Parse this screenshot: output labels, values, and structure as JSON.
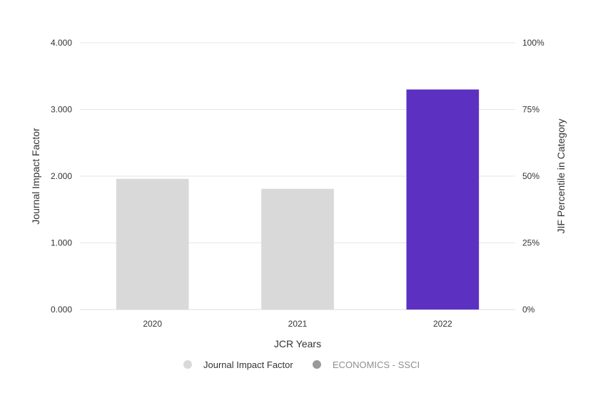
{
  "chart_data": {
    "type": "bar",
    "categories": [
      "2020",
      "2021",
      "2022"
    ],
    "series": [
      {
        "name": "Journal Impact Factor",
        "values": [
          1.96,
          1.81,
          3.3
        ],
        "colors": [
          "#d9d9d9",
          "#d9d9d9",
          "#5c31c1"
        ]
      }
    ],
    "xlabel": "JCR Years",
    "ylabel": "Journal Impact Factor",
    "ylabel_right": "JIF Percentile in Category",
    "ylim": [
      0,
      4
    ],
    "yticks": [
      "0.000",
      "1.000",
      "2.000",
      "3.000",
      "4.000"
    ],
    "ylim_right": [
      0,
      100
    ],
    "yticks_right": [
      "0%",
      "25%",
      "50%",
      "75%",
      "100%"
    ],
    "grid": true,
    "legend": {
      "placement": "bottom",
      "items": [
        {
          "label": "Journal Impact Factor",
          "color": "#d9d9d9",
          "active": true
        },
        {
          "label": "ECONOMICS - SSCI",
          "color": "#999999",
          "active": false
        }
      ]
    }
  }
}
